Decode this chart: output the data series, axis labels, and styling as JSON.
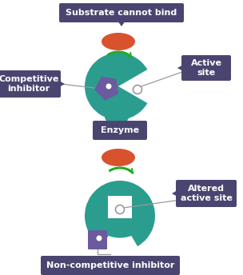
{
  "bg_color": "#ffffff",
  "teal": "#2a9d8f",
  "purple": "#6b5b9e",
  "orange": "#d9522e",
  "dark_bg": "#4a4570",
  "white": "#ffffff",
  "green": "#22aa22",
  "gray": "#999999",
  "top_label": "Substrate cannot bind",
  "comp_label": "Competitive\ninhibitor",
  "active_site_label": "Active\nsite",
  "enzyme_label": "Enzyme",
  "altered_label": "Altered\nactive site",
  "noncomp_label": "Non-competitive inhibitor"
}
